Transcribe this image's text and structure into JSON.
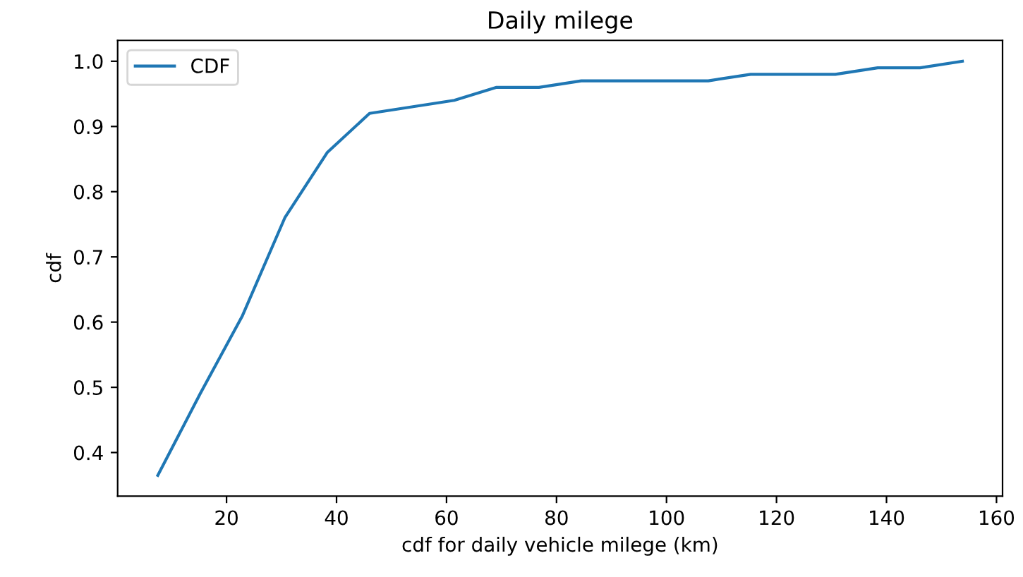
{
  "chart_data": {
    "type": "line",
    "title": "Daily milege",
    "xlabel": "cdf for daily vehicle milege (km)",
    "ylabel": "cdf",
    "x": [
      7.5,
      15.2,
      22.9,
      30.6,
      38.3,
      46.0,
      53.7,
      61.4,
      69.1,
      76.8,
      84.5,
      92.2,
      99.9,
      107.6,
      115.3,
      123.0,
      130.7,
      138.4,
      146.1,
      153.8
    ],
    "series": [
      {
        "name": "CDF",
        "color": "#1f77b4",
        "values": [
          0.365,
          0.49,
          0.61,
          0.76,
          0.86,
          0.92,
          0.93,
          0.94,
          0.96,
          0.96,
          0.97,
          0.97,
          0.97,
          0.97,
          0.98,
          0.98,
          0.98,
          0.99,
          0.99,
          1.0
        ]
      }
    ],
    "xlim": [
      0.2,
      161.1
    ],
    "ylim": [
      0.333,
      1.032
    ],
    "xticks": [
      20,
      40,
      60,
      80,
      100,
      120,
      140,
      160
    ],
    "yticks": [
      0.4,
      0.5,
      0.6,
      0.7,
      0.8,
      0.9,
      {
        "value": 1.0,
        "label": "1.0"
      }
    ],
    "legend": "upper left",
    "grid": false,
    "marker": "none",
    "line_style": "solid"
  }
}
